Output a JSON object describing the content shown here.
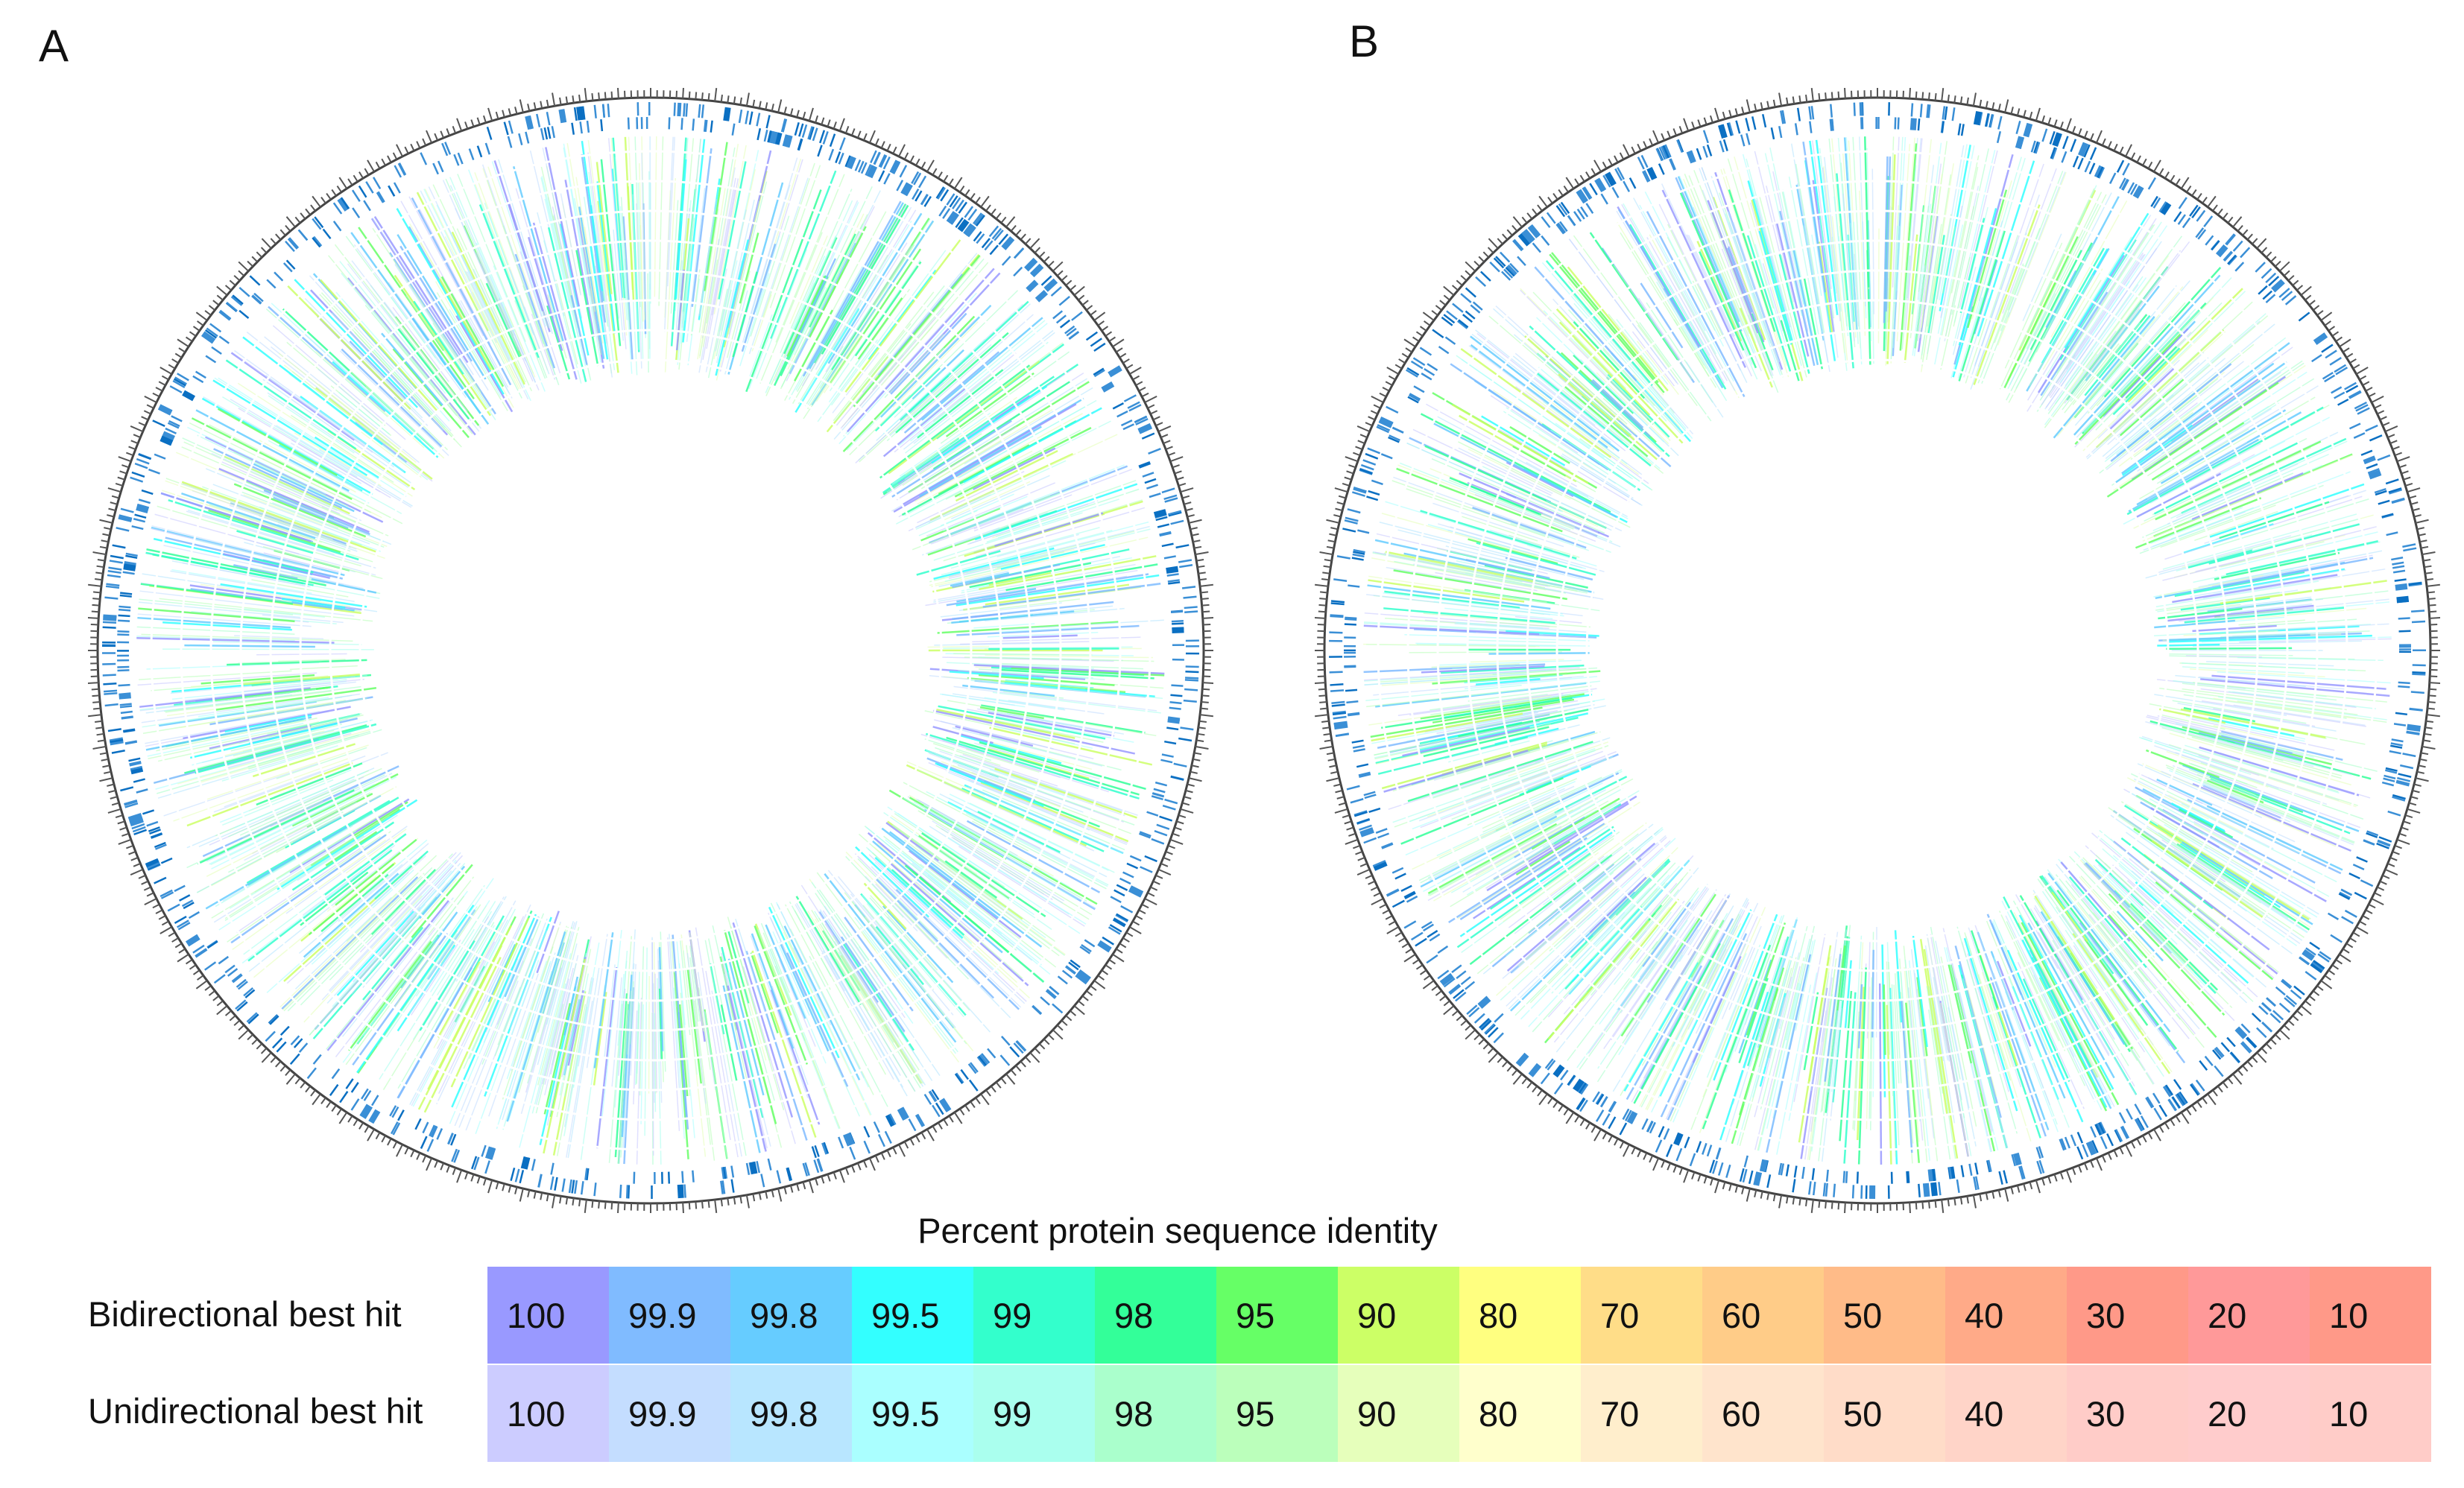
{
  "panels": [
    {
      "label": "A"
    },
    {
      "label": "B"
    }
  ],
  "legend": {
    "title": "Percent protein sequence identity",
    "values": [
      "100",
      "99.9",
      "99.8",
      "99.5",
      "99",
      "98",
      "95",
      "90",
      "80",
      "70",
      "60",
      "50",
      "40",
      "30",
      "20",
      "10"
    ],
    "rows": [
      {
        "label": "Bidirectional best hit",
        "colors": [
          "#9999ff",
          "#80bbff",
          "#66ccff",
          "#33ffff",
          "#33ffcc",
          "#33ff99",
          "#66ff66",
          "#ccff66",
          "#ffff80",
          "#ffdd88",
          "#ffcc88",
          "#ffbb88",
          "#ffaa88",
          "#ff9988",
          "#ff9999",
          "#ff9988"
        ]
      },
      {
        "label": "Unidirectional best hit",
        "colors": [
          "#ccccff",
          "#c4ddff",
          "#b8e6ff",
          "#aaffff",
          "#aaffee",
          "#aaffcc",
          "#bbffbb",
          "#e6ffbb",
          "#ffffcc",
          "#ffeecc",
          "#ffe4cc",
          "#ffdcc8",
          "#ffd4c8",
          "#ffccc8",
          "#ffcccc",
          "#ffccc8"
        ]
      }
    ]
  }
}
